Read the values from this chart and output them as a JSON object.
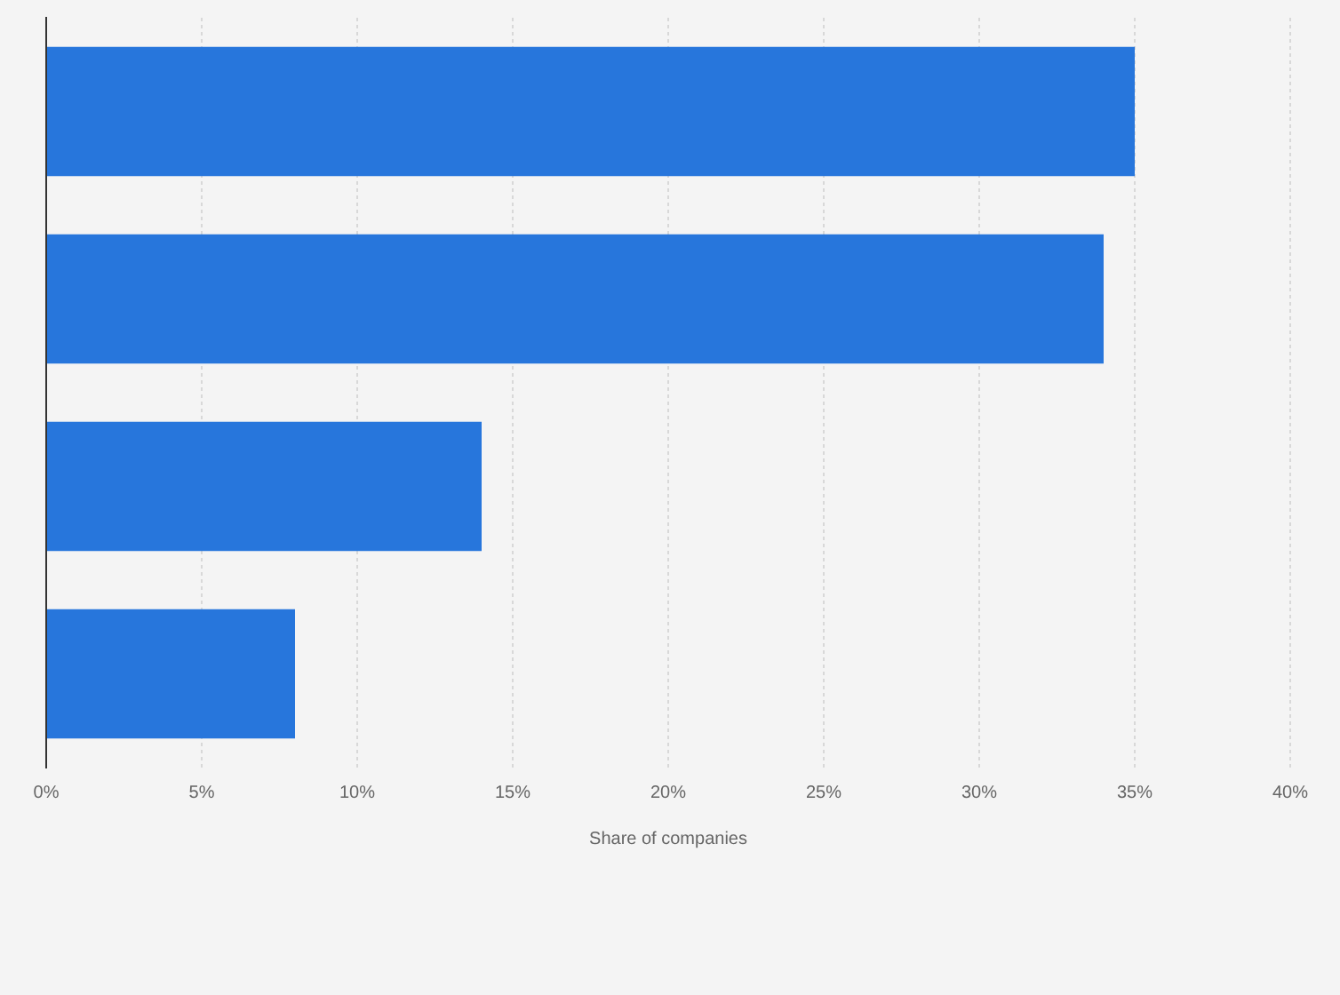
{
  "chart_data": {
    "type": "bar",
    "orientation": "horizontal",
    "categories": [
      null,
      null,
      null,
      null
    ],
    "values": [
      35,
      34,
      14,
      8
    ],
    "color": "#2776dc",
    "xlabel": "Share of companies",
    "xlim": [
      0,
      40
    ],
    "xticks": [
      {
        "value": 0,
        "label": "0%"
      },
      {
        "value": 5,
        "label": "5%"
      },
      {
        "value": 10,
        "label": "10%"
      },
      {
        "value": 15,
        "label": "15%"
      },
      {
        "value": 20,
        "label": "20%"
      },
      {
        "value": 25,
        "label": "25%"
      },
      {
        "value": 30,
        "label": "30%"
      },
      {
        "value": 35,
        "label": "35%"
      },
      {
        "value": 40,
        "label": "40%"
      }
    ],
    "grid": "x",
    "legend": false
  }
}
